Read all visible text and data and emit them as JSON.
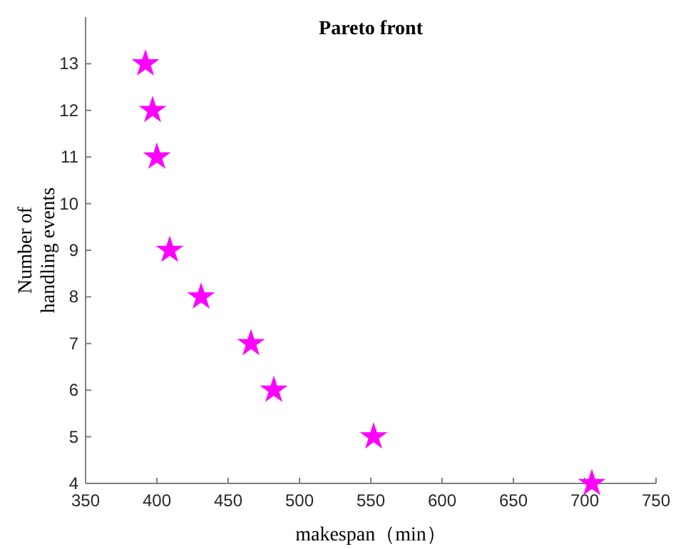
{
  "chart_data": {
    "type": "scatter",
    "title": "Pareto front",
    "xlabel": "makespan（min）",
    "ylabel": "Number of\nhandling events",
    "x": [
      392,
      397,
      400,
      409,
      431,
      466,
      482,
      552,
      705
    ],
    "values": [
      13,
      12,
      11,
      9,
      8,
      7,
      6,
      5,
      4
    ],
    "color": "#ff00ff",
    "marker": "star",
    "xlim": [
      350,
      750
    ],
    "xticks": [
      350,
      400,
      450,
      500,
      550,
      600,
      650,
      700,
      750
    ],
    "ylim": [
      4,
      14
    ],
    "yticks": [
      4,
      5,
      6,
      7,
      8,
      9,
      10,
      11,
      12,
      13
    ],
    "grid": false
  }
}
